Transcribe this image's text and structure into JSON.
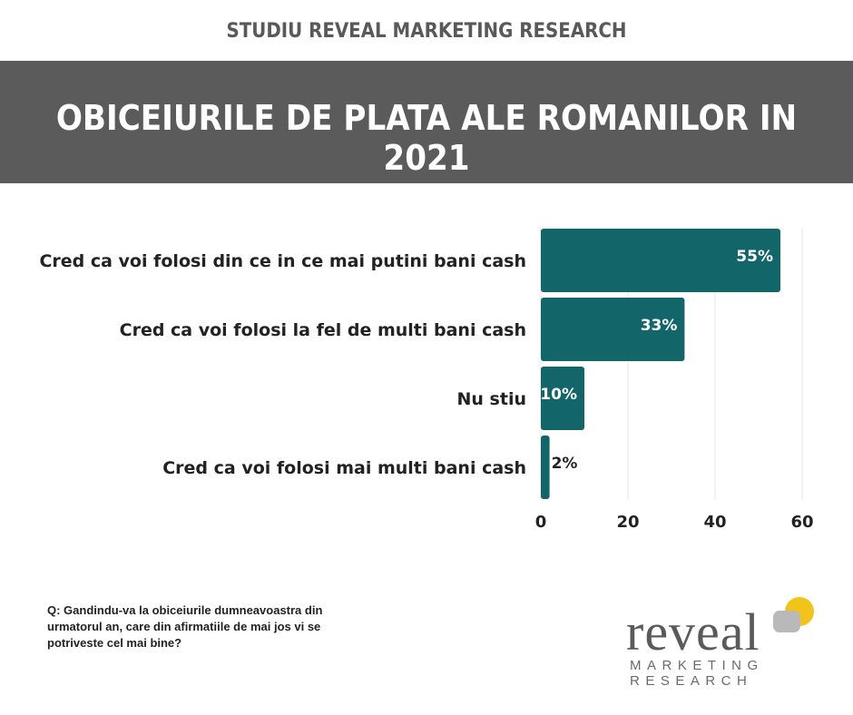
{
  "header": {
    "kicker": "STUDIU REVEAL MARKETING RESEARCH",
    "title": "OBICEIURILE DE PLATA ALE ROMANILOR IN 2021"
  },
  "chart_data": {
    "type": "bar",
    "orientation": "horizontal",
    "categories": [
      "Cred ca voi folosi din ce in ce mai putini bani cash",
      "Cred ca voi folosi la fel de multi bani cash",
      "Nu stiu",
      "Cred ca voi folosi mai multi bani cash"
    ],
    "values": [
      55,
      33,
      10,
      2
    ],
    "value_labels": [
      "55%",
      "33%",
      "10%",
      "2%"
    ],
    "xlim": [
      0,
      60
    ],
    "xticks": [
      0,
      20,
      40,
      60
    ],
    "xtick_labels": [
      "0",
      "20",
      "40",
      "60"
    ],
    "grid": true,
    "bar_color": "#12666a"
  },
  "footer": {
    "question": "Q: Gandindu-va la obiceiurile dumneavoastra din urmatorul an, care din afirmatiile de mai jos vi se potriveste cel mai bine?"
  },
  "logo": {
    "word": "reveal",
    "line1": "MARKETING",
    "line2": "RESEARCH",
    "accent_color": "#f2c318",
    "gray_color": "#b9b9b9"
  }
}
